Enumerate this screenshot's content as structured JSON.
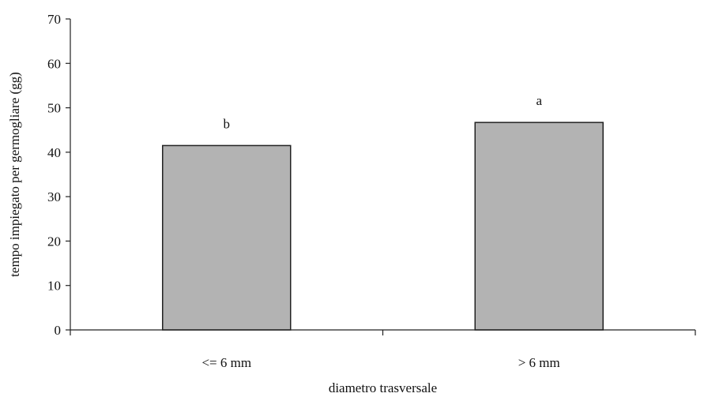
{
  "chart_data": {
    "type": "bar",
    "title": "",
    "xlabel": "diametro trasversale",
    "ylabel": "tempo impiegato per germogliare (gg)",
    "categories": [
      "<= 6 mm",
      "> 6 mm"
    ],
    "values": [
      41.5,
      46.7
    ],
    "significance_letters": [
      "b",
      "a"
    ],
    "ylim": [
      0,
      70
    ],
    "yticks": [
      0,
      10,
      20,
      30,
      40,
      50,
      60,
      70
    ],
    "grid": false,
    "legend": "none",
    "bar_color": "#b3b3b3",
    "bar_edge_color": "#222222"
  }
}
